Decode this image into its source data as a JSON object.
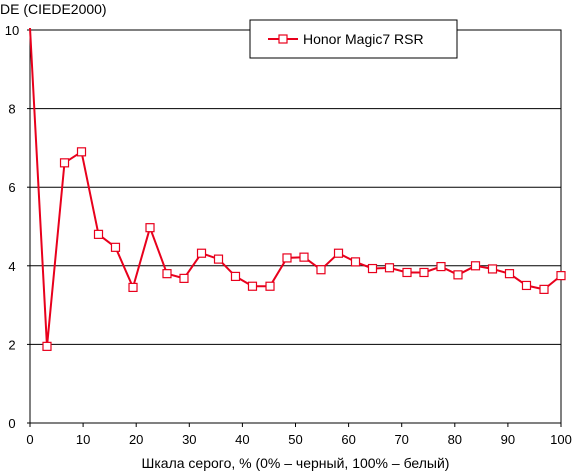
{
  "chart_data": {
    "type": "line",
    "title": "",
    "ylabel": "DE (CIEDE2000)",
    "xlabel": "Шкала серого, % (0% – черный, 100% – белый)",
    "xlim": [
      0,
      100
    ],
    "ylim": [
      0,
      10
    ],
    "x_ticks": [
      "0",
      "10",
      "20",
      "30",
      "40",
      "50",
      "60",
      "70",
      "80",
      "90",
      "100"
    ],
    "y_ticks": [
      "0",
      "2",
      "4",
      "6",
      "8",
      "10"
    ],
    "grid": "horizontal",
    "legend_position": "top-center",
    "series": [
      {
        "name": "Honor Magic7 RSR",
        "color": "#e8001c",
        "marker": "square",
        "x": [
          0,
          3.2,
          6.5,
          9.7,
          12.9,
          16.1,
          19.4,
          22.6,
          25.8,
          29.0,
          32.3,
          35.5,
          38.7,
          41.9,
          45.2,
          48.4,
          51.6,
          54.8,
          58.1,
          61.3,
          64.5,
          67.7,
          71.0,
          74.2,
          77.4,
          80.6,
          83.9,
          87.1,
          90.3,
          93.5,
          96.8,
          100
        ],
        "y": [
          10.2,
          1.95,
          6.62,
          6.9,
          4.8,
          4.47,
          3.45,
          4.97,
          3.8,
          3.68,
          4.32,
          4.17,
          3.73,
          3.48,
          3.48,
          4.2,
          4.22,
          3.9,
          4.32,
          4.1,
          3.93,
          3.95,
          3.83,
          3.83,
          3.98,
          3.77,
          4.0,
          3.92,
          3.8,
          3.5,
          3.4,
          3.75
        ]
      }
    ]
  }
}
